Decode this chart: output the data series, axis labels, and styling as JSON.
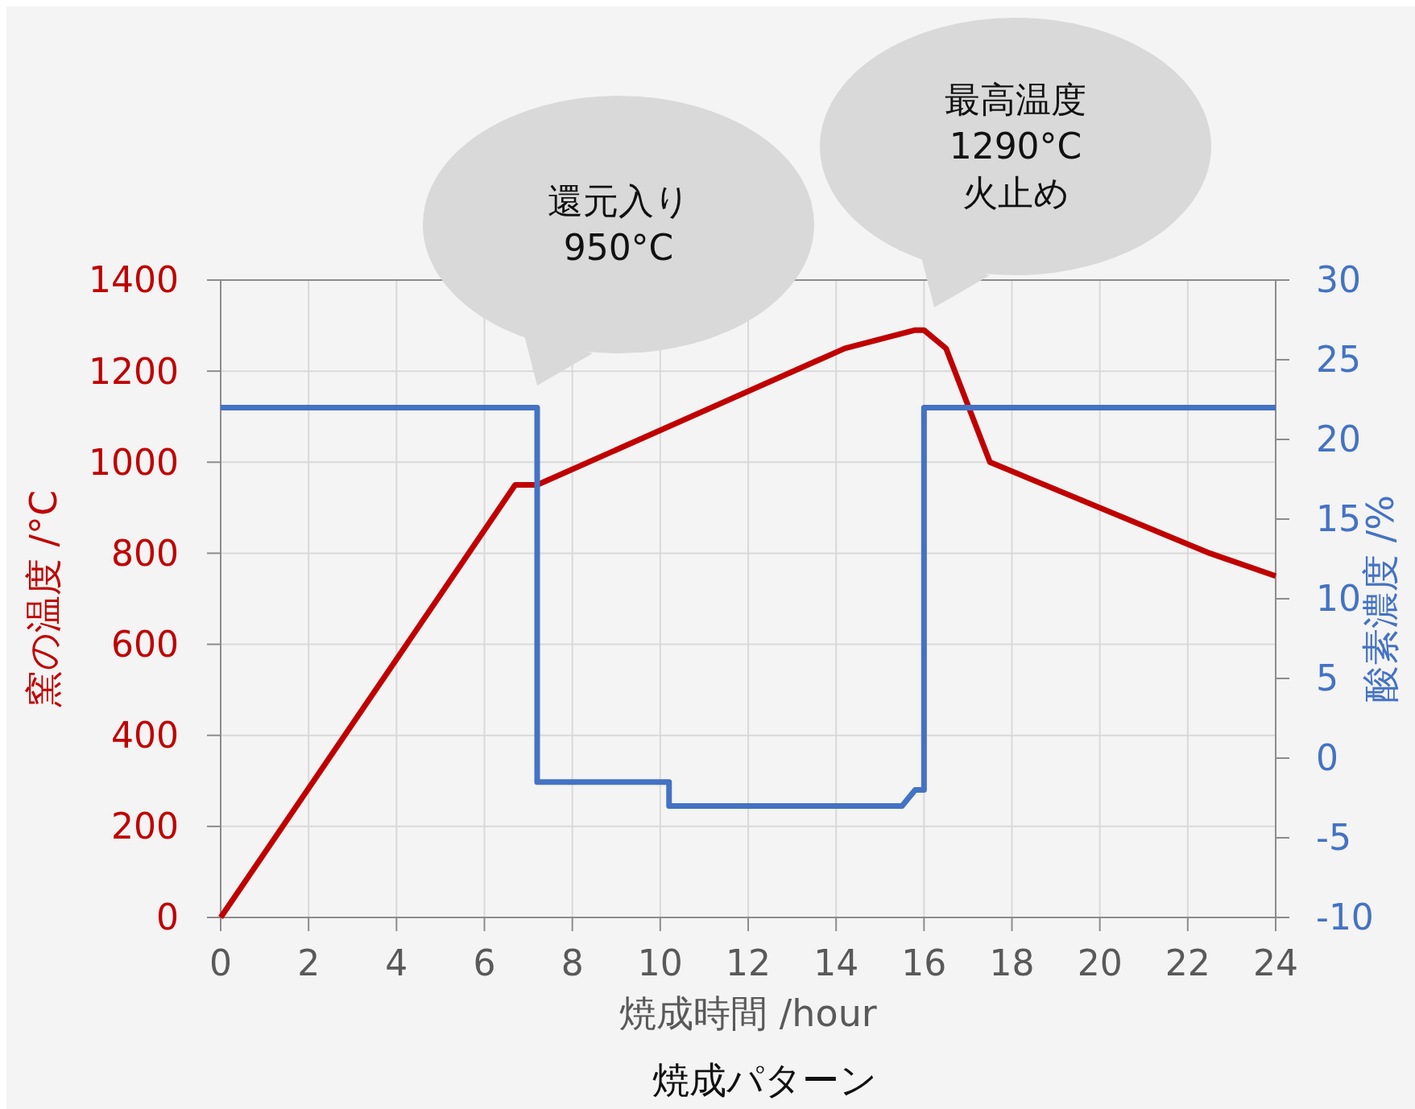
{
  "chart_data": {
    "type": "line",
    "title": "焼成パターン",
    "xlabel": "焼成時間 /hour",
    "ylabel": "窯の温度 /°C",
    "y2label": "酸素濃度 /%",
    "xlim": [
      0,
      24
    ],
    "xticks": [
      0,
      2,
      4,
      6,
      8,
      10,
      12,
      14,
      16,
      18,
      20,
      22,
      24
    ],
    "ylim": [
      0,
      1400
    ],
    "yticks": [
      0,
      200,
      400,
      600,
      800,
      1000,
      1200,
      1400
    ],
    "y2lim": [
      -10,
      30
    ],
    "y2ticks": [
      -10,
      -5,
      0,
      5,
      10,
      15,
      20,
      25,
      30
    ],
    "grid": true,
    "series": [
      {
        "color": "#c00000",
        "x": [
          0,
          6.7,
          7.2,
          14.2,
          15.8,
          16,
          16.5,
          17.5,
          22.5,
          24
        ],
        "values": [
          0,
          950,
          950,
          1250,
          1290,
          1290,
          1250,
          1000,
          800,
          750
        ]
      },
      {
        "color": "#4472c4",
        "axis": "y2",
        "x": [
          0,
          7.2,
          7.2,
          10.2,
          10.2,
          15.5,
          15.8,
          16,
          16,
          24
        ],
        "values": [
          22,
          22,
          -1.5,
          -1.5,
          -3,
          -3,
          -2,
          -2,
          22,
          22
        ]
      }
    ],
    "annotations": [
      "還元入り\n950°C",
      "最高温度\n1290°C\n火止め"
    ]
  }
}
